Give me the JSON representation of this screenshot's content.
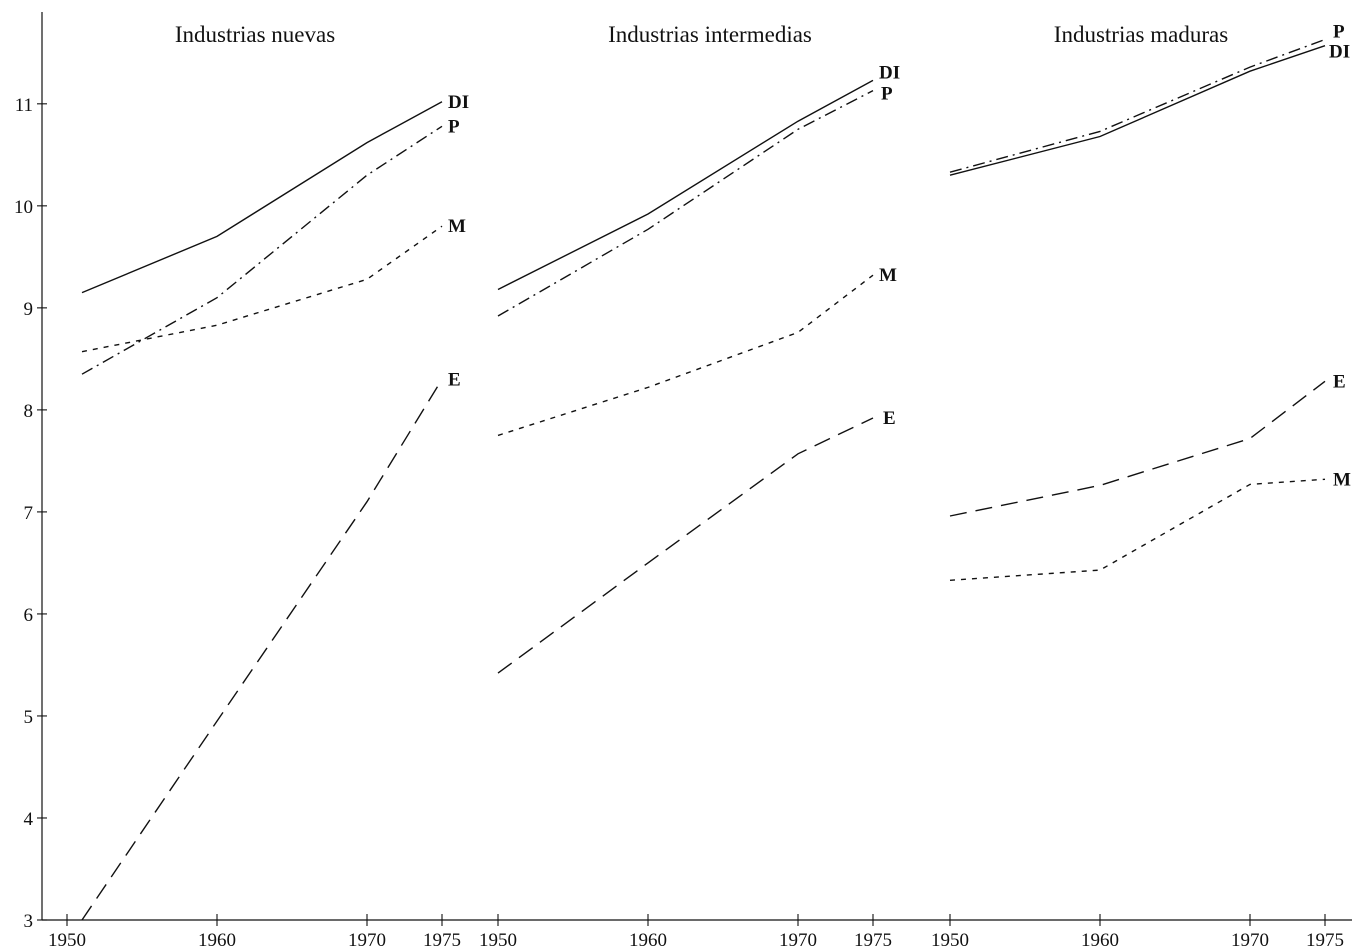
{
  "chart_data": {
    "type": "line",
    "y_axis": {
      "ylim": [
        3,
        11.9
      ],
      "ticks": [
        3,
        4,
        5,
        6,
        7,
        8,
        9,
        10,
        11
      ],
      "tick_labels": [
        "3",
        "4",
        "5",
        "6",
        "7",
        "8",
        "9",
        "10",
        "11"
      ]
    },
    "x_tick_values": [
      1950,
      1960,
      1970,
      1975
    ],
    "x_tick_labels": [
      "1950",
      "1960",
      "1970",
      "1975"
    ],
    "xlim": [
      1950,
      1975
    ],
    "grid": false,
    "styles": {
      "DI": "solid",
      "P": "dash-dot",
      "M": "short-dash",
      "E": "long-dash"
    },
    "panels": [
      {
        "title": "Industrias nuevas",
        "series": [
          {
            "name": "DI",
            "x": [
              1951,
              1960,
              1970,
              1975
            ],
            "y": [
              9.15,
              9.7,
              10.62,
              11.02
            ]
          },
          {
            "name": "P",
            "x": [
              1951,
              1960,
              1970,
              1975
            ],
            "y": [
              8.35,
              9.1,
              10.3,
              10.78
            ]
          },
          {
            "name": "M",
            "x": [
              1951,
              1960,
              1970,
              1975
            ],
            "y": [
              8.57,
              8.83,
              9.28,
              9.8
            ]
          },
          {
            "name": "E",
            "x": [
              1951,
              1960,
              1970,
              1975
            ],
            "y": [
              3.0,
              4.95,
              7.1,
              8.3
            ]
          }
        ]
      },
      {
        "title": "Industrias intermedias",
        "series": [
          {
            "name": "DI",
            "x": [
              1950,
              1960,
              1970,
              1975
            ],
            "y": [
              9.18,
              9.92,
              10.83,
              11.23
            ]
          },
          {
            "name": "P",
            "x": [
              1950,
              1960,
              1970,
              1975
            ],
            "y": [
              8.92,
              9.77,
              10.75,
              11.13
            ]
          },
          {
            "name": "M",
            "x": [
              1950,
              1960,
              1970,
              1975
            ],
            "y": [
              7.75,
              8.22,
              8.76,
              9.32
            ]
          },
          {
            "name": "E",
            "x": [
              1950,
              1960,
              1970,
              1975
            ],
            "y": [
              5.42,
              6.5,
              7.57,
              7.92
            ]
          }
        ]
      },
      {
        "title": "Industrias maduras",
        "series": [
          {
            "name": "DI",
            "x": [
              1950,
              1960,
              1970,
              1975
            ],
            "y": [
              10.3,
              10.68,
              11.32,
              11.57
            ]
          },
          {
            "name": "P",
            "x": [
              1950,
              1960,
              1970,
              1975
            ],
            "y": [
              10.33,
              10.73,
              11.36,
              11.63
            ]
          },
          {
            "name": "E",
            "x": [
              1950,
              1960,
              1970,
              1975
            ],
            "y": [
              6.96,
              7.26,
              7.72,
              8.28
            ]
          },
          {
            "name": "M",
            "x": [
              1950,
              1960,
              1970,
              1975
            ],
            "y": [
              6.33,
              6.43,
              7.27,
              7.32
            ]
          }
        ]
      }
    ]
  }
}
